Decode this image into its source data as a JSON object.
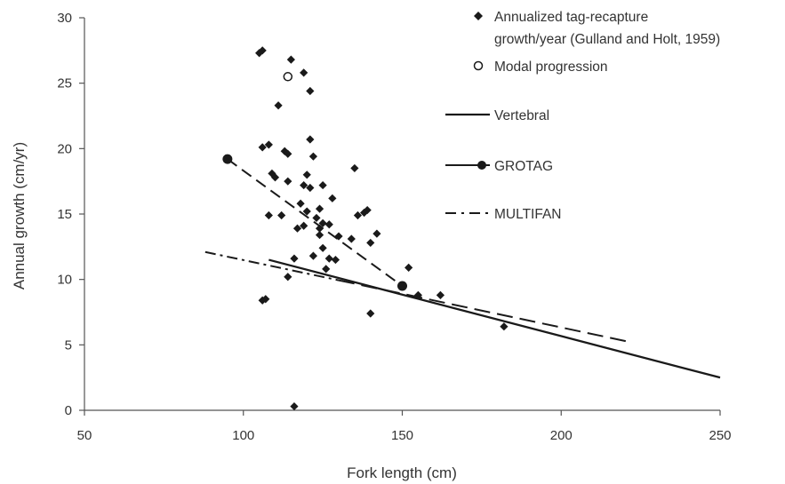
{
  "chart_data": {
    "type": "scatter",
    "xlabel": "Fork length (cm)",
    "ylabel": "Annual growth (cm/yr)",
    "xlim": [
      50,
      250
    ],
    "ylim": [
      0,
      30
    ],
    "x_ticks": [
      "50",
      "100",
      "150",
      "200",
      "250"
    ],
    "y_ticks": [
      "0",
      "5",
      "10",
      "15",
      "20",
      "25",
      "30"
    ],
    "grid": false,
    "legend_position": "top-right",
    "colors": {
      "ink": "#1a1a1a",
      "axis": "#555555",
      "text": "#333333"
    },
    "legend": {
      "tag_line1": "Annualized tag-recapture",
      "tag_line2": "growth/year (Gulland and Holt, 1959)",
      "modal": "Modal progression",
      "vertebral": "Vertebral",
      "grotag": "GROTAG",
      "multifan": "MULTIFAN"
    },
    "series": [
      {
        "name": "Annualized tag-recapture growth/year (Gulland and Holt, 1959)",
        "marker": "diamond",
        "points": [
          [
            105,
            27.3
          ],
          [
            106,
            27.5
          ],
          [
            115,
            26.8
          ],
          [
            119,
            25.8
          ],
          [
            121,
            24.4
          ],
          [
            111,
            23.3
          ],
          [
            121,
            20.7
          ],
          [
            122,
            19.4
          ],
          [
            108,
            20.3
          ],
          [
            106,
            20.1
          ],
          [
            113,
            19.8
          ],
          [
            114,
            19.6
          ],
          [
            109,
            18.1
          ],
          [
            110,
            17.8
          ],
          [
            114,
            17.5
          ],
          [
            119,
            17.2
          ],
          [
            120,
            18.0
          ],
          [
            121,
            17.0
          ],
          [
            125,
            17.2
          ],
          [
            124,
            15.4
          ],
          [
            128,
            16.2
          ],
          [
            135,
            18.5
          ],
          [
            118,
            15.8
          ],
          [
            120,
            15.2
          ],
          [
            108,
            14.9
          ],
          [
            112,
            14.9
          ],
          [
            117,
            13.9
          ],
          [
            119,
            14.1
          ],
          [
            123,
            14.7
          ],
          [
            124,
            13.9
          ],
          [
            125,
            14.3
          ],
          [
            127,
            14.2
          ],
          [
            130,
            13.3
          ],
          [
            134,
            13.1
          ],
          [
            136,
            14.9
          ],
          [
            138,
            15.1
          ],
          [
            139,
            15.3
          ],
          [
            140,
            12.8
          ],
          [
            142,
            13.5
          ],
          [
            124,
            13.4
          ],
          [
            125,
            12.4
          ],
          [
            127,
            11.6
          ],
          [
            129,
            11.5
          ],
          [
            116,
            11.6
          ],
          [
            122,
            11.8
          ],
          [
            126,
            10.8
          ],
          [
            114,
            10.2
          ],
          [
            152,
            10.9
          ],
          [
            155,
            8.8
          ],
          [
            162,
            8.8
          ],
          [
            106,
            8.4
          ],
          [
            107,
            8.5
          ],
          [
            140,
            7.4
          ],
          [
            182,
            6.4
          ],
          [
            116,
            0.3
          ]
        ]
      },
      {
        "name": "Modal progression",
        "marker": "open-circle",
        "points": [
          [
            114,
            25.5
          ]
        ]
      },
      {
        "name": "Vertebral",
        "type": "line",
        "style": "solid",
        "points": [
          [
            108,
            11.5
          ],
          [
            250,
            2.5
          ]
        ]
      },
      {
        "name": "GROTAG",
        "type": "line",
        "style": "dashed-with-endpoints",
        "points": [
          [
            95,
            19.2
          ],
          [
            150,
            9.5
          ]
        ]
      },
      {
        "name": "MULTIFAN",
        "type": "line",
        "style": "dash-dot-then-dashed",
        "points": [
          [
            88,
            12.1
          ],
          [
            222,
            5.2
          ]
        ]
      }
    ]
  }
}
